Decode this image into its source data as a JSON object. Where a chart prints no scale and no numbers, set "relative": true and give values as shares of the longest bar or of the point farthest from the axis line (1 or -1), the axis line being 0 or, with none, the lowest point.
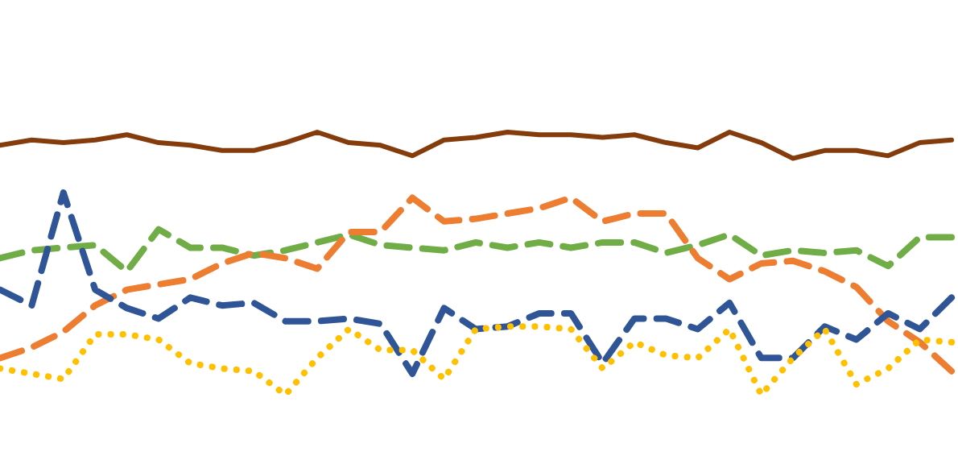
{
  "chart_data": {
    "type": "line",
    "relative": true,
    "categories": [
      null,
      null,
      null,
      null,
      null,
      null,
      null,
      null,
      null,
      null,
      null,
      null,
      null,
      null,
      null,
      null,
      null,
      null,
      null,
      null,
      null,
      null,
      null,
      null,
      null,
      null,
      null,
      null,
      null,
      null,
      null
    ],
    "series": [
      {
        "color": "#843c0c",
        "line_style": "solid",
        "values": [
          0.95,
          0.97,
          0.96,
          0.97,
          0.99,
          0.96,
          0.95,
          0.93,
          0.93,
          0.96,
          1.0,
          0.96,
          0.95,
          0.91,
          0.97,
          0.98,
          1.0,
          0.99,
          0.99,
          0.98,
          0.99,
          0.96,
          0.94,
          1.0,
          0.96,
          0.9,
          0.93,
          0.93,
          0.91,
          0.96,
          0.97
        ]
      },
      {
        "color": "#70ad47",
        "line_style": "dashed",
        "values": [
          0.52,
          0.55,
          0.56,
          0.57,
          0.47,
          0.63,
          0.56,
          0.56,
          0.53,
          0.55,
          0.58,
          0.61,
          0.57,
          0.56,
          0.55,
          0.58,
          0.56,
          0.58,
          0.56,
          0.58,
          0.58,
          0.54,
          0.57,
          0.61,
          0.53,
          0.55,
          0.54,
          0.55,
          0.49,
          0.6,
          0.6
        ]
      },
      {
        "color": "#ed7d31",
        "line_style": "dashed",
        "values": [
          0.14,
          0.18,
          0.24,
          0.34,
          0.4,
          0.42,
          0.44,
          0.5,
          0.54,
          0.52,
          0.48,
          0.62,
          0.62,
          0.75,
          0.66,
          0.67,
          0.69,
          0.71,
          0.75,
          0.66,
          0.69,
          0.69,
          0.52,
          0.44,
          0.5,
          0.51,
          0.47,
          0.41,
          0.28,
          0.2,
          0.09
        ]
      },
      {
        "color": "#2f5597",
        "line_style": "dashed",
        "values": [
          0.4,
          0.34,
          0.77,
          0.4,
          0.33,
          0.29,
          0.37,
          0.34,
          0.35,
          0.28,
          0.28,
          0.29,
          0.27,
          0.08,
          0.33,
          0.25,
          0.26,
          0.31,
          0.31,
          0.12,
          0.29,
          0.29,
          0.25,
          0.35,
          0.14,
          0.14,
          0.26,
          0.21,
          0.31,
          0.25,
          0.37
        ]
      },
      {
        "color": "#ffc000",
        "line_style": "dotted",
        "values": [
          0.1,
          0.08,
          0.06,
          0.23,
          0.23,
          0.21,
          0.12,
          0.1,
          0.09,
          0.0,
          0.14,
          0.25,
          0.17,
          0.17,
          0.06,
          0.25,
          0.26,
          0.26,
          0.25,
          0.1,
          0.2,
          0.15,
          0.14,
          0.25,
          0.0,
          0.14,
          0.25,
          0.04,
          0.1,
          0.21,
          0.2
        ]
      }
    ]
  }
}
